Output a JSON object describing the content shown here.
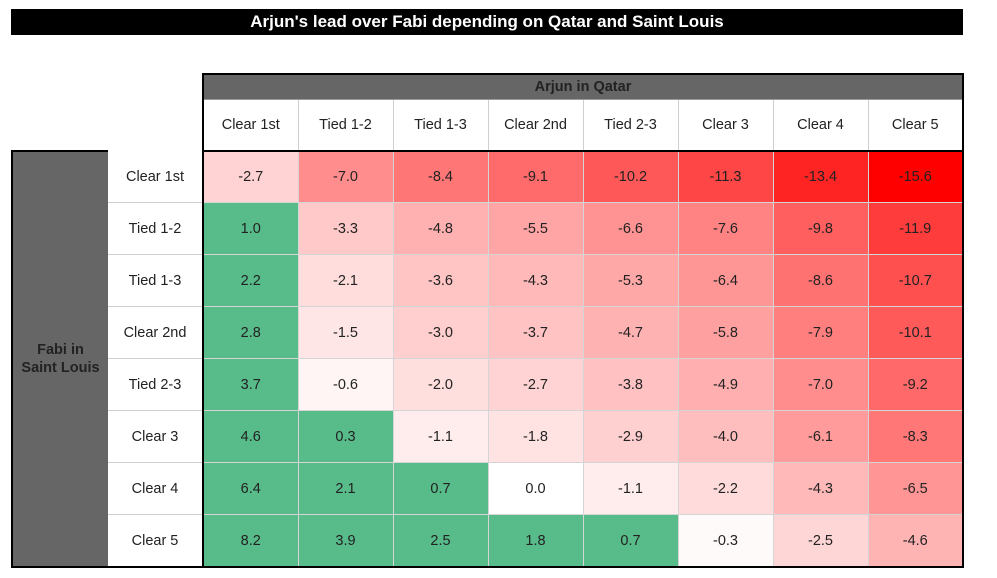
{
  "title": "Arjun's lead over Fabi depending on Qatar and Saint Louis",
  "colors": {
    "title_bg": "#000000",
    "header_bg": "#666666",
    "positive": "#57bb8a",
    "zero": "#ffffff",
    "min_negative": "#ff0000"
  },
  "chart_data": {
    "type": "heatmap",
    "title": "Arjun's lead over Fabi depending on Qatar and Saint Louis",
    "col_group_label": "Arjun in Qatar",
    "row_group_label": "Fabi in\nSaint Louis",
    "columns": [
      "Clear 1st",
      "Tied 1-2",
      "Tied 1-3",
      "Clear 2nd",
      "Tied 2-3",
      "Clear 3",
      "Clear 4",
      "Clear 5"
    ],
    "rows": [
      "Clear 1st",
      "Tied 1-2",
      "Tied 1-3",
      "Clear 2nd",
      "Tied 2-3",
      "Clear 3",
      "Clear 4",
      "Clear 5"
    ],
    "values": [
      [
        "-2.7",
        "-7.0",
        "-8.4",
        "-9.1",
        "-10.2",
        "-11.3",
        "-13.4",
        "-15.6"
      ],
      [
        "1.0",
        "-3.3",
        "-4.8",
        "-5.5",
        "-6.6",
        "-7.6",
        "-9.8",
        "-11.9"
      ],
      [
        "2.2",
        "-2.1",
        "-3.6",
        "-4.3",
        "-5.3",
        "-6.4",
        "-8.6",
        "-10.7"
      ],
      [
        "2.8",
        "-1.5",
        "-3.0",
        "-3.7",
        "-4.7",
        "-5.8",
        "-7.9",
        "-10.1"
      ],
      [
        "3.7",
        "-0.6",
        "-2.0",
        "-2.7",
        "-3.8",
        "-4.9",
        "-7.0",
        "-9.2"
      ],
      [
        "4.6",
        "0.3",
        "-1.1",
        "-1.8",
        "-2.9",
        "-4.0",
        "-6.1",
        "-8.3"
      ],
      [
        "6.4",
        "2.1",
        "0.7",
        "0.0",
        "-1.1",
        "-2.2",
        "-4.3",
        "-6.5"
      ],
      [
        "8.2",
        "3.9",
        "2.5",
        "1.8",
        "0.7",
        "-0.3",
        "-2.5",
        "-4.6"
      ]
    ]
  }
}
